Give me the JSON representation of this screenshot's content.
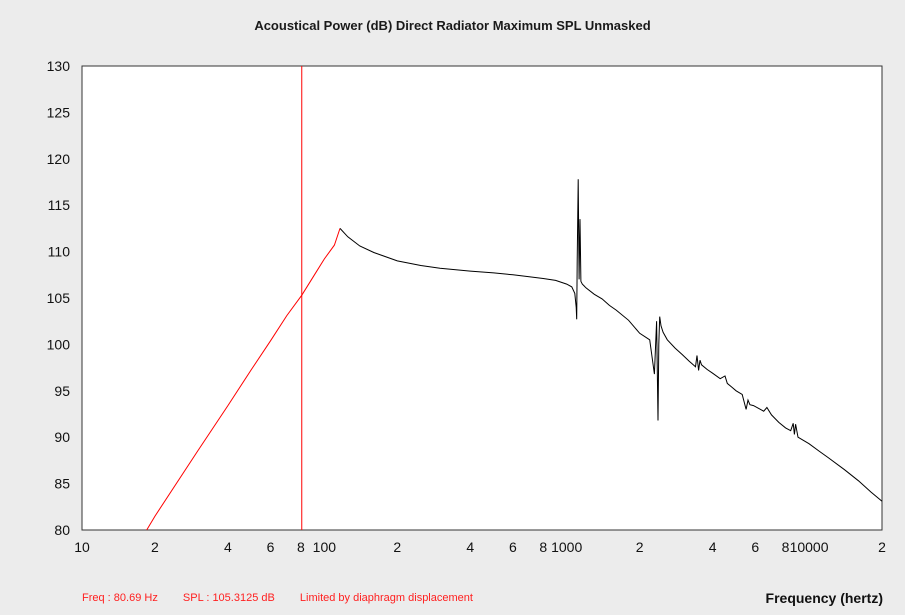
{
  "chart_data": {
    "type": "line",
    "title": "Acoustical Power (dB)   Direct Radiator   Maximum SPL   Unmasked",
    "xlabel": "Frequency (hertz)",
    "ylabel": "",
    "xscale": "log",
    "xlim": [
      10,
      20000
    ],
    "ylim": [
      80,
      130
    ],
    "yticks": [
      80,
      85,
      90,
      95,
      100,
      105,
      110,
      115,
      120,
      125,
      130
    ],
    "xticks": [
      {
        "value": 10,
        "label": "10"
      },
      {
        "value": 20,
        "label": "2"
      },
      {
        "value": 40,
        "label": "4"
      },
      {
        "value": 60,
        "label": "6"
      },
      {
        "value": 80,
        "label": "8"
      },
      {
        "value": 100,
        "label": "100"
      },
      {
        "value": 200,
        "label": "2"
      },
      {
        "value": 400,
        "label": "4"
      },
      {
        "value": 600,
        "label": "6"
      },
      {
        "value": 800,
        "label": "8"
      },
      {
        "value": 1000,
        "label": "1000"
      },
      {
        "value": 2000,
        "label": "2"
      },
      {
        "value": 4000,
        "label": "4"
      },
      {
        "value": 6000,
        "label": "6"
      },
      {
        "value": 8000,
        "label": "8"
      },
      {
        "value": 10000,
        "label": "10000"
      },
      {
        "value": 20000,
        "label": "2"
      }
    ],
    "grid": false,
    "cursor": {
      "freq": 80.69,
      "color": "#ff0000"
    },
    "series": [
      {
        "color": "#ff0000",
        "x": [
          18.5,
          20,
          30,
          40,
          50,
          60,
          70,
          80.69,
          90,
          100,
          110,
          116
        ],
        "y": [
          80,
          81.5,
          88.5,
          93.4,
          97.3,
          100.4,
          103.1,
          105.3,
          107.3,
          109.2,
          110.7,
          112.5
        ]
      },
      {
        "color": "#000000",
        "x": [
          116,
          125,
          140,
          160,
          200,
          250,
          300,
          400,
          500,
          600,
          700,
          800,
          900,
          1000,
          1050,
          1080,
          1095,
          1100,
          1105,
          1115,
          1125,
          1135,
          1145,
          1160,
          1180,
          1200,
          1300,
          1400,
          1500,
          1600,
          1800,
          2000,
          2200,
          2300,
          2350,
          2380,
          2400,
          2420,
          2450,
          2500,
          2600,
          2800,
          3000,
          3200,
          3400,
          3450,
          3500,
          3550,
          3600,
          3800,
          4000,
          4300,
          4500,
          4600,
          4800,
          5000,
          5300,
          5500,
          5600,
          5700,
          5900,
          6200,
          6500,
          6700,
          7000,
          7500,
          8000,
          8400,
          8600,
          8700,
          8800,
          9000,
          10000,
          11000,
          12000,
          14000,
          16000,
          18000,
          20000
        ],
        "y": [
          112.5,
          111.6,
          110.6,
          109.9,
          109.0,
          108.5,
          108.2,
          107.9,
          107.7,
          107.5,
          107.3,
          107.1,
          106.9,
          106.5,
          106.2,
          105.5,
          104.0,
          102.7,
          109.0,
          117.8,
          107.0,
          113.5,
          106.8,
          106.5,
          106.3,
          106.1,
          105.4,
          104.9,
          104.2,
          103.7,
          102.6,
          101.2,
          100.5,
          96.8,
          102.5,
          91.8,
          100.0,
          103.0,
          102.0,
          101.3,
          100.5,
          99.6,
          98.9,
          98.2,
          97.6,
          98.8,
          97.2,
          98.3,
          97.8,
          97.3,
          96.9,
          96.3,
          96.6,
          95.8,
          95.4,
          95.0,
          94.6,
          93.0,
          94.0,
          93.5,
          93.4,
          93.1,
          92.8,
          93.2,
          92.4,
          91.6,
          91.0,
          90.7,
          91.5,
          90.3,
          91.4,
          90.0,
          89.3,
          88.5,
          87.8,
          86.5,
          85.3,
          84.1,
          83.1
        ]
      }
    ]
  },
  "status": {
    "freq": "Freq : 80.69 Hz",
    "spl": "SPL : 105.3125 dB",
    "note": "Limited by diaphragm displacement"
  }
}
